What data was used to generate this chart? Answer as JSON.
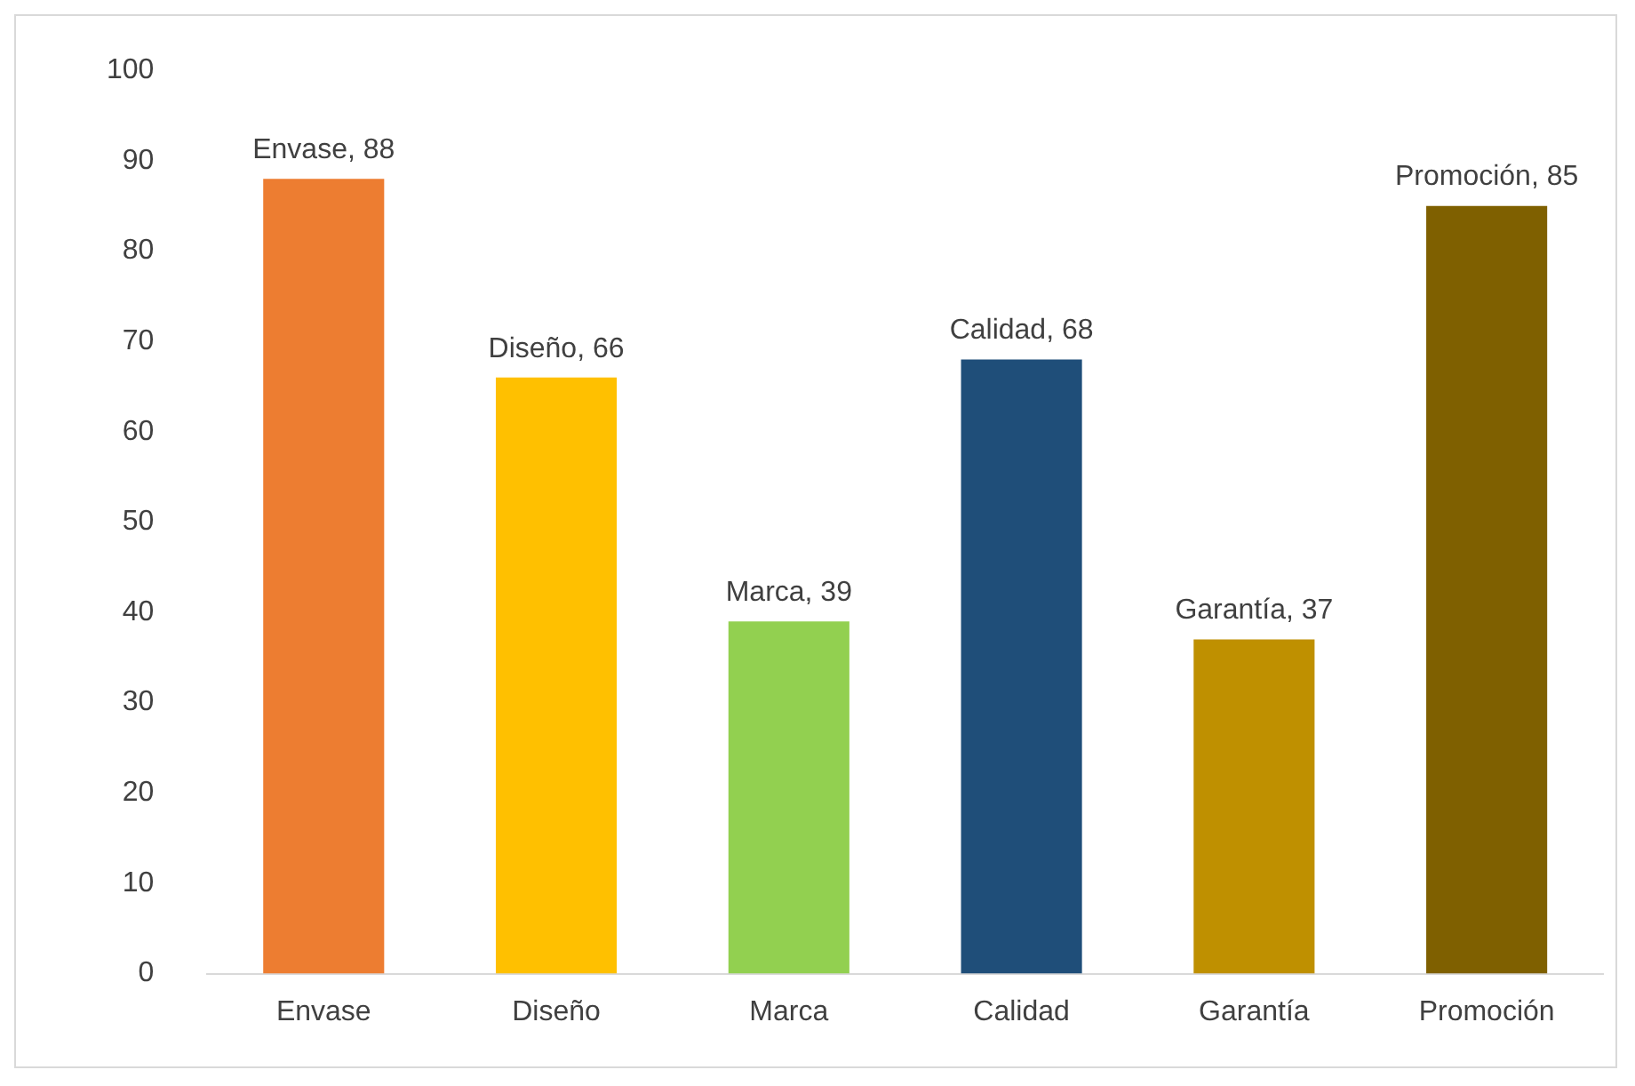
{
  "chart_data": {
    "type": "bar",
    "categories": [
      "Envase",
      "Diseño",
      "Marca",
      "Calidad",
      "Garantía",
      "Promoción"
    ],
    "values": [
      88,
      66,
      39,
      68,
      37,
      85
    ],
    "colors": [
      "#ed7d31",
      "#ffc000",
      "#92d050",
      "#1f4e79",
      "#bf9000",
      "#7f6000"
    ],
    "value_labels": [
      "Envase, 88",
      "Diseño, 66",
      "Marca, 39",
      "Calidad, 68",
      "Garantía, 37",
      "Promoción, 85"
    ],
    "ylim": [
      0,
      100
    ],
    "yticks": [
      0,
      10,
      20,
      30,
      40,
      50,
      60,
      70,
      80,
      90,
      100
    ],
    "grid": false,
    "legend": false
  }
}
